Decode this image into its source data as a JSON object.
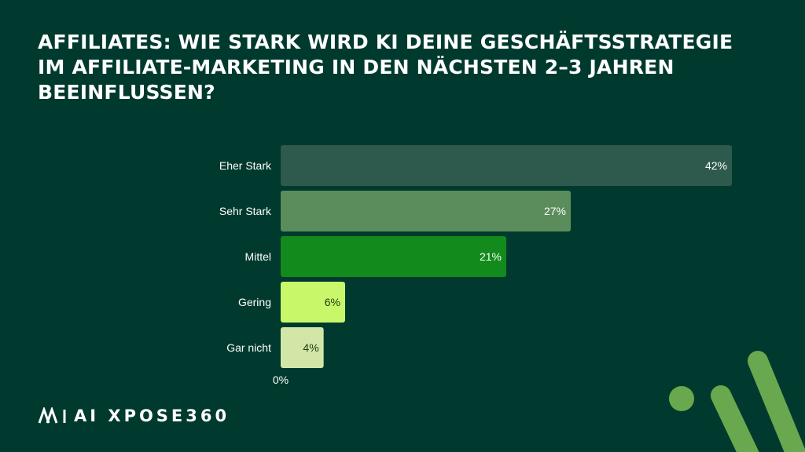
{
  "title_lines": [
    "AFFILIATES: WIE STARK WIRD KI DEINE GESCHÄFTSSTRATEGIE",
    "IM AFFILIATE-MARKETING IN DEN NÄCHSTEN 2–3 JAHREN",
    "BEEINFLUSSEN?"
  ],
  "brand": {
    "name": "AI XPOSE360"
  },
  "colors": {
    "background": "#003a2e",
    "bar_colors": [
      "#2e5a4d",
      "#5b8d5c",
      "#138a1c",
      "#c8f76a",
      "#d2e6a8"
    ],
    "label_colors": [
      "#ffffff",
      "#ffffff",
      "#ffffff",
      "#1f3a10",
      "#1f3a10"
    ],
    "accent": "#6aa84f"
  },
  "chart_data": {
    "type": "bar",
    "orientation": "horizontal",
    "title": "AFFILIATES: WIE STARK WIRD KI DEINE GESCHÄFTSSTRATEGIE IM AFFILIATE-MARKETING IN DEN NÄCHSTEN 2–3 JAHREN BEEINFLUSSEN?",
    "categories": [
      "Eher Stark",
      "Sehr Stark",
      "Mittel",
      "Gering",
      "Gar nicht"
    ],
    "values": [
      42,
      27,
      21,
      6,
      4
    ],
    "value_labels": [
      "42%",
      "27%",
      "21%",
      "6%",
      "4%"
    ],
    "xlim": [
      0,
      42
    ],
    "x_tick_labels": [
      "0%"
    ],
    "xlabel": "",
    "ylabel": "",
    "grid": false,
    "legend": "none"
  }
}
